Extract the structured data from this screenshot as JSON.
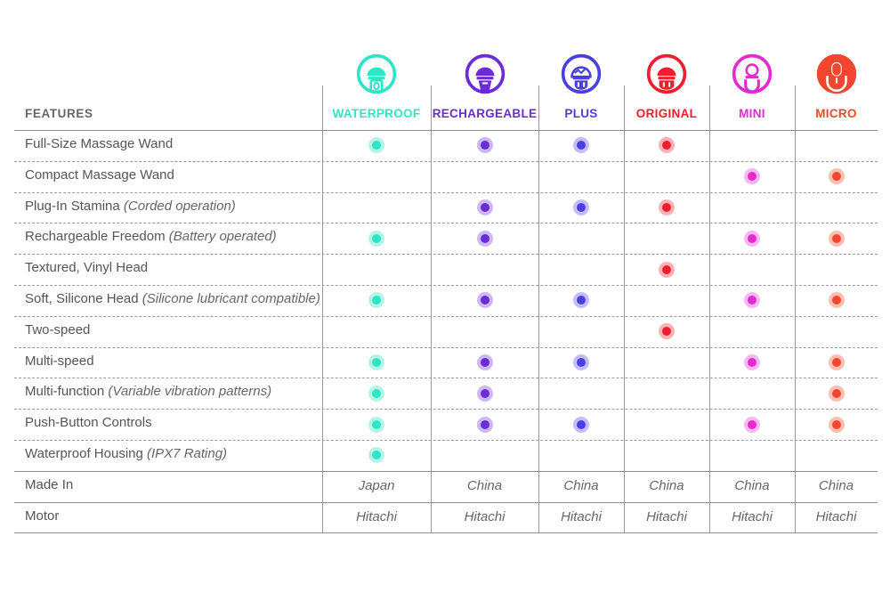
{
  "header": {
    "features_label": "FEATURES"
  },
  "columns": [
    {
      "name": "WATERPROOF",
      "color": "#2ee6c6",
      "halo": "#b6f4e8",
      "icon": "waterproof-wand-icon"
    },
    {
      "name": "RECHARGEABLE",
      "color": "#6a2bd8",
      "halo": "#cdb9f2",
      "icon": "rechargeable-wand-icon"
    },
    {
      "name": "PLUS",
      "color": "#4a3fe0",
      "halo": "#c3befa",
      "icon": "plus-wand-icon"
    },
    {
      "name": "ORIGINAL",
      "color": "#ee1d2f",
      "halo": "#f9b2b6",
      "icon": "original-wand-icon"
    },
    {
      "name": "MINI",
      "color": "#e62ad2",
      "halo": "#f7b8ef",
      "icon": "mini-wand-icon"
    },
    {
      "name": "MICRO",
      "color": "#f2472e",
      "halo": "#fbc0b3",
      "icon": "micro-wand-icon"
    }
  ],
  "rows": [
    {
      "label": "Full-Size Massage Wand",
      "note": "",
      "marks": [
        1,
        1,
        1,
        1,
        0,
        0
      ]
    },
    {
      "label": "Compact Massage Wand",
      "note": "",
      "marks": [
        0,
        0,
        0,
        0,
        1,
        1
      ]
    },
    {
      "label": "Plug-In Stamina",
      "note": "(Corded operation)",
      "marks": [
        0,
        1,
        1,
        1,
        0,
        0
      ]
    },
    {
      "label": "Rechargeable Freedom",
      "note": "(Battery operated)",
      "marks": [
        1,
        1,
        0,
        0,
        1,
        1
      ]
    },
    {
      "label": "Textured, Vinyl Head",
      "note": "",
      "marks": [
        0,
        0,
        0,
        1,
        0,
        0
      ]
    },
    {
      "label": "Soft, Silicone Head",
      "note": "(Silicone lubricant compatible)",
      "marks": [
        1,
        1,
        1,
        0,
        1,
        1
      ]
    },
    {
      "label": "Two-speed",
      "note": "",
      "marks": [
        0,
        0,
        0,
        1,
        0,
        0
      ]
    },
    {
      "label": "Multi-speed",
      "note": "",
      "marks": [
        1,
        1,
        1,
        0,
        1,
        1
      ]
    },
    {
      "label": "Multi-function",
      "note": "(Variable vibration patterns)",
      "marks": [
        1,
        1,
        0,
        0,
        0,
        1
      ]
    },
    {
      "label": "Push-Button Controls",
      "note": "",
      "marks": [
        1,
        1,
        1,
        0,
        1,
        1
      ]
    },
    {
      "label": "Waterproof Housing",
      "note": "(IPX7 Rating)",
      "marks": [
        1,
        0,
        0,
        0,
        0,
        0
      ]
    }
  ],
  "text_rows": [
    {
      "label": "Made In",
      "values": [
        "Japan",
        "China",
        "China",
        "China",
        "China",
        "China"
      ]
    },
    {
      "label": "Motor",
      "values": [
        "Hitachi",
        "Hitachi",
        "Hitachi",
        "Hitachi",
        "Hitachi",
        "Hitachi"
      ]
    }
  ]
}
